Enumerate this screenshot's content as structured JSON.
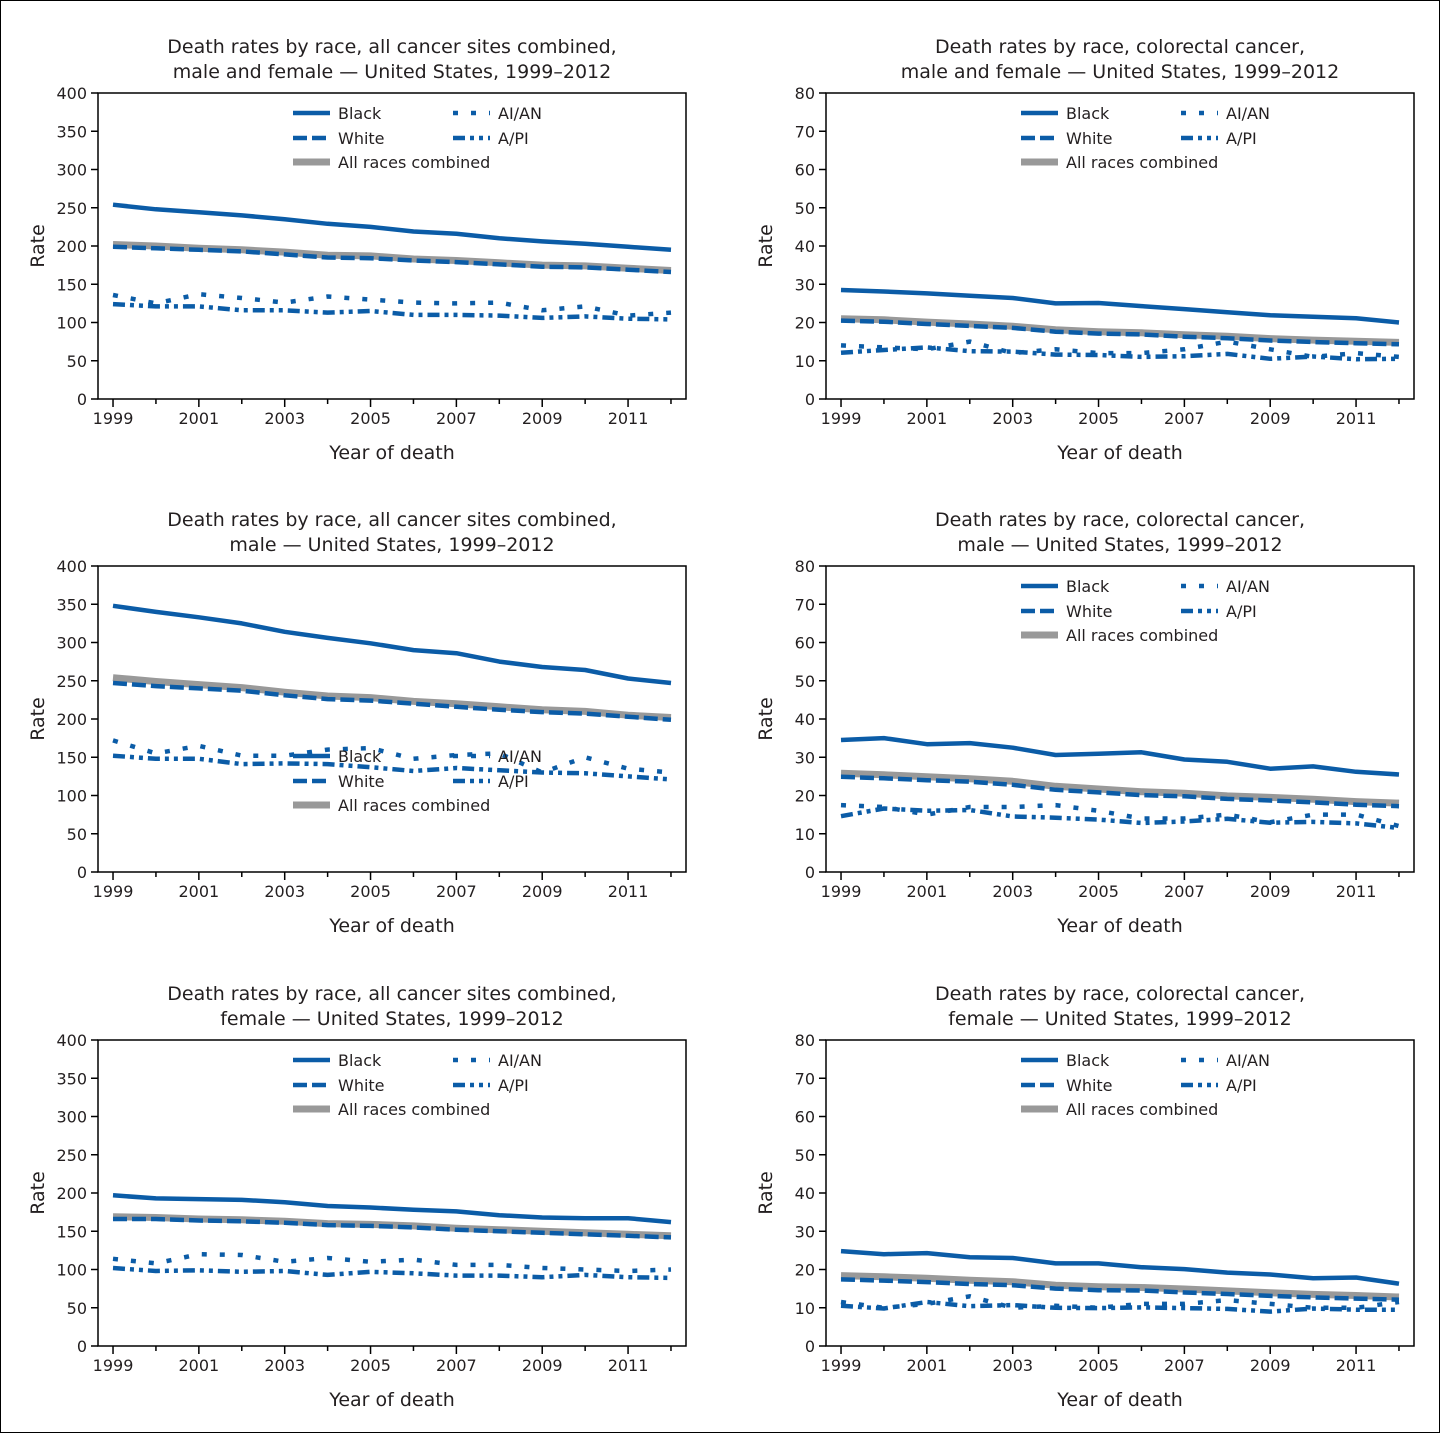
{
  "colors": {
    "series": "#0b5ca7",
    "all_races": "#999999",
    "text": "#231f20"
  },
  "chart_data": [
    {
      "type": "line",
      "title": [
        "Death rates by race, all cancer sites combined,",
        "male and female — United States, 1999–2012"
      ],
      "xlabel": "Year of death",
      "ylabel": "Rate",
      "ylim": [
        0,
        400
      ],
      "yticks": [
        0,
        50,
        100,
        150,
        200,
        250,
        300,
        350,
        400
      ],
      "x": [
        1999,
        2000,
        2001,
        2002,
        2003,
        2004,
        2005,
        2006,
        2007,
        2008,
        2009,
        2010,
        2011,
        2012
      ],
      "xticks": [
        1999,
        2001,
        2003,
        2005,
        2007,
        2009,
        2011
      ],
      "legend": "top",
      "series": [
        {
          "name": "Black",
          "style": "solid",
          "values": [
            254,
            248,
            244,
            240,
            235,
            229,
            225,
            219,
            216,
            210,
            206,
            203,
            199,
            195
          ]
        },
        {
          "name": "AI/AN",
          "style": "dot",
          "values": [
            136,
            125,
            137,
            132,
            126,
            134,
            130,
            126,
            125,
            126,
            116,
            121,
            109,
            113
          ]
        },
        {
          "name": "White",
          "style": "dash",
          "values": [
            199,
            197,
            195,
            193,
            189,
            185,
            184,
            181,
            179,
            176,
            173,
            172,
            169,
            166
          ]
        },
        {
          "name": "A/PI",
          "style": "dashdot",
          "values": [
            124,
            121,
            121,
            116,
            116,
            113,
            115,
            110,
            110,
            109,
            106,
            108,
            105,
            104
          ]
        },
        {
          "name": "All races combined",
          "style": "gray",
          "values": [
            202,
            200,
            197,
            195,
            192,
            188,
            187,
            183,
            181,
            178,
            175,
            174,
            171,
            168
          ]
        }
      ]
    },
    {
      "type": "line",
      "title": [
        "Death rates by race, colorectal cancer,",
        "male and female — United States, 1999–2012"
      ],
      "xlabel": "Year of death",
      "ylabel": "Rate",
      "ylim": [
        0,
        80
      ],
      "yticks": [
        0,
        10,
        20,
        30,
        40,
        50,
        60,
        70,
        80
      ],
      "x": [
        1999,
        2000,
        2001,
        2002,
        2003,
        2004,
        2005,
        2006,
        2007,
        2008,
        2009,
        2010,
        2011,
        2012
      ],
      "xticks": [
        1999,
        2001,
        2003,
        2005,
        2007,
        2009,
        2011
      ],
      "legend": "top",
      "series": [
        {
          "name": "Black",
          "style": "solid",
          "values": [
            28.5,
            28.1,
            27.6,
            27.0,
            26.4,
            25.0,
            25.1,
            24.3,
            23.5,
            22.7,
            21.9,
            21.5,
            21.1,
            20.0
          ]
        },
        {
          "name": "AI/AN",
          "style": "dot",
          "values": [
            14.0,
            13.5,
            13.0,
            15.0,
            12.0,
            13.0,
            12.0,
            12.0,
            13.0,
            15.0,
            13.0,
            11.0,
            12.0,
            11.0
          ]
        },
        {
          "name": "White",
          "style": "dash",
          "values": [
            20.5,
            20.2,
            19.6,
            19.1,
            18.6,
            17.6,
            17.1,
            16.9,
            16.3,
            15.9,
            15.3,
            14.9,
            14.6,
            14.3
          ]
        },
        {
          "name": "A/PI",
          "style": "dashdot",
          "values": [
            12.1,
            12.8,
            13.5,
            12.5,
            12.4,
            11.6,
            11.5,
            11.0,
            11.2,
            11.8,
            10.5,
            11.1,
            10.4,
            10.5
          ]
        },
        {
          "name": "All races combined",
          "style": "gray",
          "values": [
            21.0,
            20.7,
            20.1,
            19.6,
            19.0,
            18.1,
            17.6,
            17.3,
            16.8,
            16.4,
            15.8,
            15.4,
            15.1,
            14.8
          ]
        }
      ]
    },
    {
      "type": "line",
      "title": [
        "Death rates by race, all cancer sites combined,",
        "male — United States, 1999–2012"
      ],
      "xlabel": "Year of death",
      "ylabel": "Rate",
      "ylim": [
        0,
        400
      ],
      "yticks": [
        0,
        50,
        100,
        150,
        200,
        250,
        300,
        350,
        400
      ],
      "x": [
        1999,
        2000,
        2001,
        2002,
        2003,
        2004,
        2005,
        2006,
        2007,
        2008,
        2009,
        2010,
        2011,
        2012
      ],
      "xticks": [
        1999,
        2001,
        2003,
        2005,
        2007,
        2009,
        2011
      ],
      "legend": "bottom",
      "series": [
        {
          "name": "Black",
          "style": "solid",
          "values": [
            348,
            340,
            333,
            325,
            314,
            306,
            299,
            290,
            286,
            275,
            268,
            264,
            253,
            247
          ]
        },
        {
          "name": "AI/AN",
          "style": "dot",
          "values": [
            172,
            155,
            165,
            152,
            152,
            160,
            162,
            148,
            153,
            155,
            130,
            150,
            135,
            130
          ]
        },
        {
          "name": "White",
          "style": "dash",
          "values": [
            247,
            243,
            240,
            237,
            231,
            226,
            224,
            220,
            216,
            212,
            209,
            207,
            203,
            199
          ]
        },
        {
          "name": "A/PI",
          "style": "dashdot",
          "values": [
            152,
            148,
            148,
            141,
            142,
            141,
            137,
            132,
            136,
            133,
            130,
            129,
            125,
            121
          ]
        },
        {
          "name": "All races combined",
          "style": "gray",
          "values": [
            254,
            249,
            245,
            241,
            235,
            230,
            228,
            223,
            220,
            216,
            212,
            210,
            205,
            202
          ]
        }
      ]
    },
    {
      "type": "line",
      "title": [
        "Death rates by race, colorectal cancer,",
        "male — United States, 1999–2012"
      ],
      "xlabel": "Year of death",
      "ylabel": "Rate",
      "ylim": [
        0,
        80
      ],
      "yticks": [
        0,
        10,
        20,
        30,
        40,
        50,
        60,
        70,
        80
      ],
      "x": [
        1999,
        2000,
        2001,
        2002,
        2003,
        2004,
        2005,
        2006,
        2007,
        2008,
        2009,
        2010,
        2011,
        2012
      ],
      "xticks": [
        1999,
        2001,
        2003,
        2005,
        2007,
        2009,
        2011
      ],
      "legend": "top",
      "series": [
        {
          "name": "Black",
          "style": "solid",
          "values": [
            34.5,
            35.0,
            33.4,
            33.7,
            32.5,
            30.6,
            30.9,
            31.3,
            29.4,
            28.8,
            27.0,
            27.6,
            26.2,
            25.5
          ]
        },
        {
          "name": "AI/AN",
          "style": "dot",
          "values": [
            17.5,
            17.0,
            15.0,
            17.0,
            17.0,
            17.5,
            16.0,
            14.0,
            14.0,
            15.0,
            13.0,
            15.0,
            15.0,
            12.0
          ]
        },
        {
          "name": "White",
          "style": "dash",
          "values": [
            24.9,
            24.5,
            24.0,
            23.6,
            22.8,
            21.5,
            20.8,
            20.1,
            19.8,
            19.1,
            18.7,
            18.2,
            17.6,
            17.2
          ]
        },
        {
          "name": "A/PI",
          "style": "dashdot",
          "values": [
            14.6,
            16.6,
            16.0,
            16.2,
            14.5,
            14.2,
            13.7,
            12.8,
            13.2,
            13.9,
            12.9,
            13.1,
            12.7,
            11.5
          ]
        },
        {
          "name": "All races combined",
          "style": "gray",
          "values": [
            25.8,
            25.4,
            24.9,
            24.4,
            23.7,
            22.4,
            21.7,
            21.0,
            20.6,
            19.9,
            19.5,
            19.0,
            18.4,
            18.0
          ]
        }
      ]
    },
    {
      "type": "line",
      "title": [
        "Death rates by race, all cancer sites combined,",
        "female — United States, 1999–2012"
      ],
      "xlabel": "Year of death",
      "ylabel": "Rate",
      "ylim": [
        0,
        400
      ],
      "yticks": [
        0,
        50,
        100,
        150,
        200,
        250,
        300,
        350,
        400
      ],
      "x": [
        1999,
        2000,
        2001,
        2002,
        2003,
        2004,
        2005,
        2006,
        2007,
        2008,
        2009,
        2010,
        2011,
        2012
      ],
      "xticks": [
        1999,
        2001,
        2003,
        2005,
        2007,
        2009,
        2011
      ],
      "legend": "top",
      "series": [
        {
          "name": "Black",
          "style": "solid",
          "values": [
            197,
            193,
            192,
            191,
            188,
            183,
            181,
            178,
            176,
            171,
            168,
            167,
            167,
            162
          ]
        },
        {
          "name": "AI/AN",
          "style": "dot",
          "values": [
            114,
            108,
            120,
            119,
            110,
            115,
            110,
            113,
            106,
            106,
            102,
            100,
            98,
            100
          ]
        },
        {
          "name": "White",
          "style": "dash",
          "values": [
            166,
            166,
            164,
            163,
            161,
            158,
            157,
            155,
            152,
            150,
            148,
            146,
            144,
            142
          ]
        },
        {
          "name": "A/PI",
          "style": "dashdot",
          "values": [
            102,
            98,
            99,
            97,
            98,
            93,
            97,
            95,
            92,
            92,
            90,
            93,
            90,
            89
          ]
        },
        {
          "name": "All races combined",
          "style": "gray",
          "values": [
            169,
            168,
            166,
            165,
            163,
            160,
            159,
            157,
            154,
            152,
            150,
            148,
            146,
            144
          ]
        }
      ]
    },
    {
      "type": "line",
      "title": [
        "Death rates by race, colorectal cancer,",
        "female — United States, 1999–2012"
      ],
      "xlabel": "Year of death",
      "ylabel": "Rate",
      "ylim": [
        0,
        80
      ],
      "yticks": [
        0,
        10,
        20,
        30,
        40,
        50,
        60,
        70,
        80
      ],
      "x": [
        1999,
        2000,
        2001,
        2002,
        2003,
        2004,
        2005,
        2006,
        2007,
        2008,
        2009,
        2010,
        2011,
        2012
      ],
      "xticks": [
        1999,
        2001,
        2003,
        2005,
        2007,
        2009,
        2011
      ],
      "legend": "top",
      "series": [
        {
          "name": "Black",
          "style": "solid",
          "values": [
            24.8,
            24.0,
            24.3,
            23.2,
            23.0,
            21.6,
            21.6,
            20.6,
            20.1,
            19.2,
            18.7,
            17.7,
            17.9,
            16.3
          ]
        },
        {
          "name": "AI/AN",
          "style": "dot",
          "values": [
            11.5,
            10.0,
            11.0,
            13.0,
            10.0,
            10.5,
            10.0,
            11.0,
            11.0,
            12.0,
            11.0,
            10.0,
            10.0,
            11.5
          ]
        },
        {
          "name": "White",
          "style": "dash",
          "values": [
            17.4,
            17.1,
            16.7,
            16.2,
            15.9,
            15.0,
            14.6,
            14.5,
            14.0,
            13.6,
            13.1,
            12.7,
            12.4,
            12.1
          ]
        },
        {
          "name": "A/PI",
          "style": "dashdot",
          "values": [
            10.5,
            9.8,
            11.5,
            10.4,
            10.7,
            10.0,
            9.9,
            10.1,
            9.9,
            9.7,
            9.0,
            9.8,
            9.5,
            9.5
          ]
        },
        {
          "name": "All races combined",
          "style": "gray",
          "values": [
            18.4,
            18.1,
            17.7,
            17.2,
            16.8,
            15.9,
            15.5,
            15.3,
            14.9,
            14.4,
            13.9,
            13.5,
            13.2,
            12.8
          ]
        }
      ]
    }
  ]
}
